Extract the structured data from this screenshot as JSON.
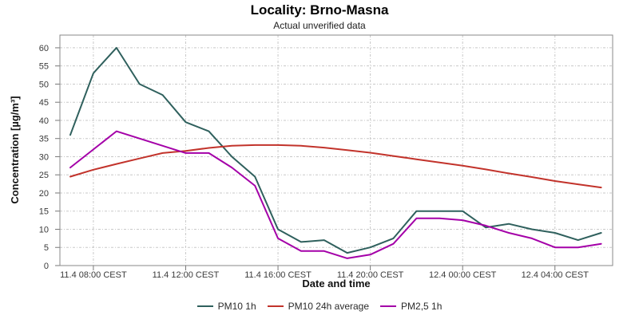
{
  "title": "Locality: Brno-Masna",
  "subtitle": "Actual unverified data",
  "chart_data": {
    "type": "line",
    "title": "Locality: Brno-Masna",
    "subtitle": "Actual unverified data",
    "xlabel": "Date and time",
    "ylabel": "Concentration [µg/m³]",
    "grid": true,
    "legend_position": "bottom",
    "x_hours": [
      7,
      8,
      9,
      10,
      11,
      12,
      13,
      14,
      15,
      16,
      17,
      18,
      19,
      20,
      21,
      22,
      23,
      24,
      25,
      26,
      27,
      28,
      29,
      30
    ],
    "x_ticks": [
      {
        "hour": 8,
        "label": "11.4 08:00 CEST"
      },
      {
        "hour": 12,
        "label": "11.4 12:00 CEST"
      },
      {
        "hour": 16,
        "label": "11.4 16:00 CEST"
      },
      {
        "hour": 20,
        "label": "11.4 20:00 CEST"
      },
      {
        "hour": 24,
        "label": "12.4 00:00 CEST"
      },
      {
        "hour": 28,
        "label": "12.4 04:00 CEST"
      }
    ],
    "y_ticks": [
      0,
      5,
      10,
      15,
      20,
      25,
      30,
      35,
      40,
      45,
      50,
      55,
      60
    ],
    "xlim_hours": [
      6.55,
      30.5
    ],
    "ylim": [
      0,
      63.5
    ],
    "series": [
      {
        "name": "PM10 1h",
        "color": "#2F605D",
        "values": [
          36,
          53,
          60,
          50,
          47,
          39.5,
          37,
          30,
          24.5,
          10,
          6.5,
          7,
          3.5,
          5,
          7.5,
          15,
          15,
          15,
          10.5,
          11.5,
          10,
          9,
          7,
          9
        ]
      },
      {
        "name": "PM10 24h average",
        "color": "#C2332B",
        "values": [
          24.5,
          26.4,
          28,
          29.5,
          31,
          31.6,
          32.4,
          33,
          33.2,
          33.2,
          33,
          32.5,
          31.8,
          31.1,
          30.2,
          29.3,
          28.4,
          27.5,
          26.5,
          25.4,
          24.4,
          23.3,
          22.4,
          21.5
        ]
      },
      {
        "name": "PM2,5 1h",
        "color": "#A400A8",
        "values": [
          27,
          32,
          37,
          35,
          33,
          31,
          31,
          27,
          22,
          7.5,
          4,
          4,
          2,
          3,
          6,
          13,
          13,
          12.5,
          11,
          9,
          7.5,
          5,
          5,
          6
        ]
      }
    ],
    "style": {
      "grid_color": "#c8c8c8",
      "frame_color": "#8a8a8a",
      "tick_color": "#777777",
      "tick_label_color": "#3a3a3a",
      "line_width": 2
    }
  }
}
